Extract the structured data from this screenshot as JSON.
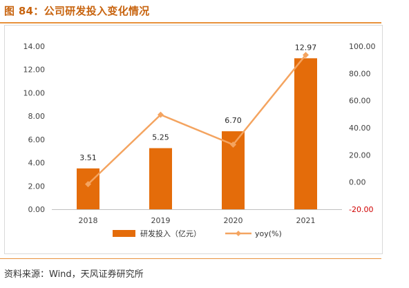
{
  "figure": {
    "title": "图 84：公司研发投入变化情况",
    "source": "资料来源：Wind，天风证券研究所"
  },
  "colors": {
    "bar": "#e46c0a",
    "line": "#f4a460",
    "title": "#c8640f",
    "rule": "#e8913b",
    "negative_tick": "#d00000",
    "axis_text": "#404040"
  },
  "chart_data": {
    "type": "bar",
    "categories": [
      "2018",
      "2019",
      "2020",
      "2021"
    ],
    "series": [
      {
        "name": "研发投入（亿元）",
        "type": "bar",
        "axis": "left",
        "values": [
          3.51,
          5.25,
          6.7,
          12.97
        ],
        "labels": [
          "3.51",
          "5.25",
          "6.70",
          "12.97"
        ]
      },
      {
        "name": "yoy(%)",
        "type": "line",
        "axis": "right",
        "marker": "diamond",
        "values": [
          -1.5,
          49.6,
          27.6,
          93.6
        ]
      }
    ],
    "y_left": {
      "min": 0,
      "max": 14,
      "ticks": [
        "0.00",
        "2.00",
        "4.00",
        "6.00",
        "8.00",
        "10.00",
        "12.00",
        "14.00"
      ]
    },
    "y_right": {
      "min": -20,
      "max": 100,
      "ticks": [
        "-20.00",
        "0.00",
        "20.00",
        "40.00",
        "60.00",
        "80.00",
        "100.00"
      ]
    },
    "grid": false,
    "legend": "bottom"
  }
}
